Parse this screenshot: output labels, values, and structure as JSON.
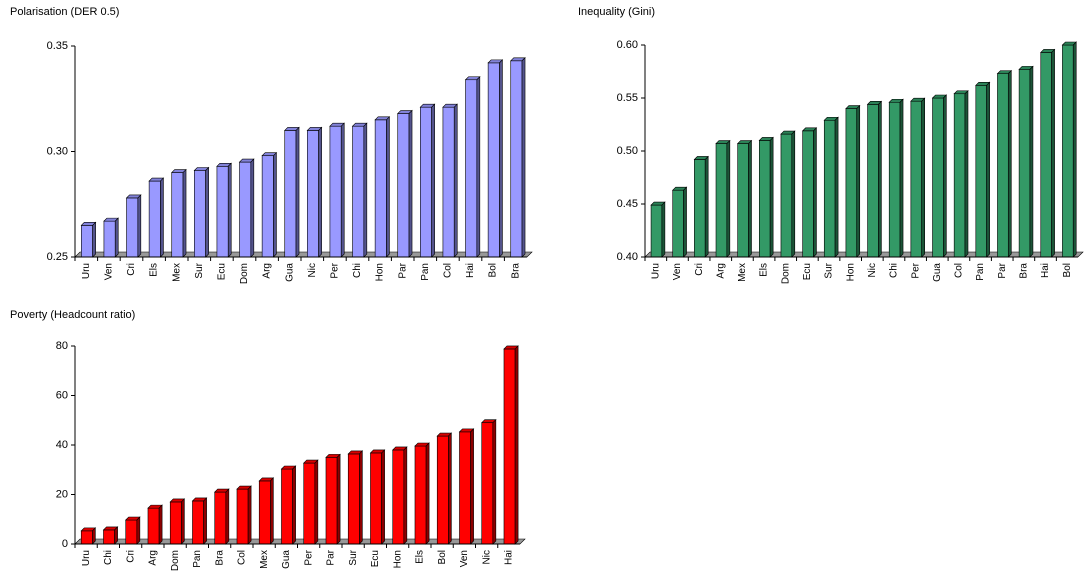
{
  "chart_data": [
    {
      "type": "bar3d",
      "title": "Polarisation (DER 0.5)",
      "color": "#9999ff",
      "categories": [
        "Uru",
        "Ven",
        "Cri",
        "Els",
        "Mex",
        "Sur",
        "Ecu",
        "Dom",
        "Arg",
        "Gua",
        "Nic",
        "Per",
        "Chi",
        "Hon",
        "Par",
        "Pan",
        "Col",
        "Hai",
        "Bol",
        "Bra"
      ],
      "values": [
        0.265,
        0.267,
        0.278,
        0.286,
        0.29,
        0.291,
        0.293,
        0.295,
        0.298,
        0.31,
        0.31,
        0.312,
        0.312,
        0.315,
        0.318,
        0.321,
        0.321,
        0.334,
        0.342,
        0.343
      ],
      "ylim": [
        0.25,
        0.35
      ],
      "yticks": [
        0.25,
        {
          "value": 0.3,
          "label": "0.30"
        },
        0.35
      ]
    },
    {
      "type": "bar3d",
      "title": "Inequality (Gini)",
      "color": "#339966",
      "categories": [
        "Uru",
        "Ven",
        "Cri",
        "Arg",
        "Mex",
        "Els",
        "Dom",
        "Ecu",
        "Sur",
        "Hon",
        "Nic",
        "Chi",
        "Per",
        "Gua",
        "Col",
        "Pan",
        "Par",
        "Bra",
        "Hai",
        "Bol"
      ],
      "values": [
        0.449,
        0.463,
        0.492,
        0.507,
        0.507,
        0.51,
        0.516,
        0.519,
        0.529,
        0.54,
        0.544,
        0.546,
        0.547,
        0.55,
        0.554,
        0.562,
        0.573,
        0.577,
        0.593,
        0.6
      ],
      "ylim": [
        0.4,
        0.6
      ],
      "yticks": [
        {
          "value": 0.4,
          "label": "0.40"
        },
        0.45,
        {
          "value": 0.5,
          "label": "0.50"
        },
        0.55,
        {
          "value": 0.6,
          "label": "0.60"
        }
      ]
    },
    {
      "type": "bar3d",
      "title": "Poverty (Headcount ratio)",
      "color": "#ff0000",
      "categories": [
        "Uru",
        "Chi",
        "Cri",
        "Arg",
        "Dom",
        "Pan",
        "Bra",
        "Col",
        "Mex",
        "Gua",
        "Per",
        "Par",
        "Sur",
        "Ecu",
        "Hon",
        "Els",
        "Bol",
        "Ven",
        "Nic",
        "Hai"
      ],
      "values": [
        5.3,
        5.7,
        9.7,
        14.5,
        17,
        17.4,
        21,
        22.2,
        25.5,
        30.3,
        32.7,
        35,
        36.4,
        36.8,
        38,
        39.6,
        43.6,
        45.3,
        49,
        78.8
      ],
      "ylim": [
        0,
        80
      ],
      "yticks": [
        0,
        20,
        40,
        60,
        80
      ]
    }
  ]
}
